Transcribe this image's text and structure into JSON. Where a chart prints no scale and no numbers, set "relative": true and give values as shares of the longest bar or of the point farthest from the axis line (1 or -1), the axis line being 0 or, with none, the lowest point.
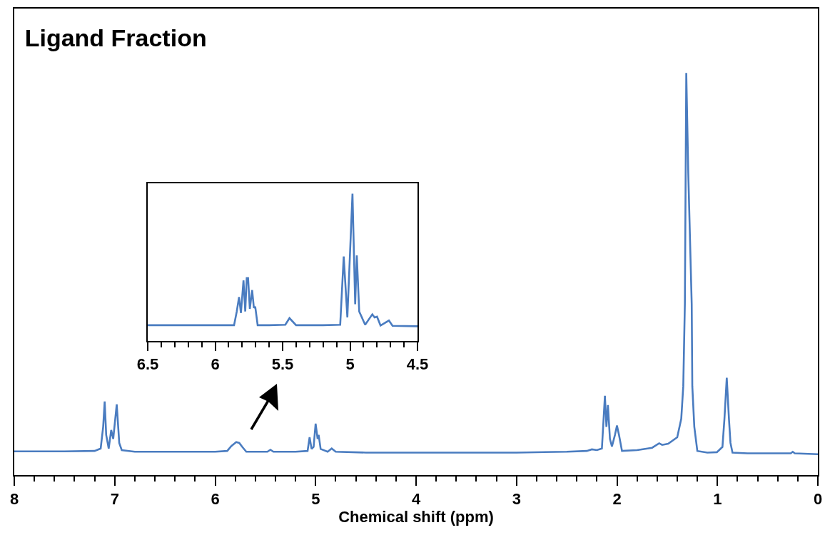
{
  "chart_data": [
    {
      "type": "line",
      "title": "Ligand Fraction",
      "xlabel": "Chemical shift (ppm)",
      "relative": true,
      "xlim": [
        8,
        0
      ],
      "xticks": [
        0,
        1,
        2,
        3,
        4,
        5,
        6,
        7,
        8,
        {
          "value": 0.2,
          "label": null
        },
        {
          "value": 0.4,
          "label": null
        },
        {
          "value": 0.6,
          "label": null
        },
        {
          "value": 0.8,
          "label": null
        },
        {
          "value": 1.2,
          "label": null
        },
        {
          "value": 1.4,
          "label": null
        },
        {
          "value": 1.6,
          "label": null
        },
        {
          "value": 1.8,
          "label": null
        },
        {
          "value": 2.2,
          "label": null
        },
        {
          "value": 2.4,
          "label": null
        },
        {
          "value": 2.6,
          "label": null
        },
        {
          "value": 2.8,
          "label": null
        },
        {
          "value": 3.2,
          "label": null
        },
        {
          "value": 3.4,
          "label": null
        },
        {
          "value": 3.6,
          "label": null
        },
        {
          "value": 3.8,
          "label": null
        },
        {
          "value": 4.2,
          "label": null
        },
        {
          "value": 4.4,
          "label": null
        },
        {
          "value": 4.6,
          "label": null
        },
        {
          "value": 4.8,
          "label": null
        },
        {
          "value": 5.2,
          "label": null
        },
        {
          "value": 5.4,
          "label": null
        },
        {
          "value": 5.6,
          "label": null
        },
        {
          "value": 5.8,
          "label": null
        },
        {
          "value": 6.2,
          "label": null
        },
        {
          "value": 6.4,
          "label": null
        },
        {
          "value": 6.6,
          "label": null
        },
        {
          "value": 6.8,
          "label": null
        },
        {
          "value": 7.2,
          "label": null
        },
        {
          "value": 7.4,
          "label": null
        },
        {
          "value": 7.6,
          "label": null
        },
        {
          "value": 7.8,
          "label": null
        }
      ],
      "x": [
        8,
        7.5,
        7.2,
        7.14,
        7.115,
        7.1,
        7.085,
        7.06,
        7.035,
        7.015,
        6.98,
        6.955,
        6.93,
        6.8,
        6.5,
        6.0,
        5.88,
        5.84,
        5.81,
        5.79,
        5.76,
        5.73,
        5.69,
        5.6,
        5.48,
        5.45,
        5.42,
        5.2,
        5.08,
        5.06,
        5.04,
        5.02,
        5.0,
        4.98,
        4.97,
        4.95,
        4.88,
        4.84,
        4.8,
        4.5,
        4.0,
        3.0,
        2.5,
        2.3,
        2.25,
        2.2,
        2.15,
        2.12,
        2.105,
        2.09,
        2.07,
        2.05,
        2.02,
        2.0,
        1.98,
        1.95,
        1.8,
        1.65,
        1.58,
        1.55,
        1.49,
        1.4,
        1.36,
        1.34,
        1.324,
        1.31,
        1.29,
        1.256,
        1.25,
        1.23,
        1.2,
        1.1,
        1.005,
        0.95,
        0.93,
        0.907,
        0.885,
        0.87,
        0.85,
        0.7,
        0.5,
        0.27,
        0.25,
        0.23,
        0
      ],
      "series": [
        {
          "color": "#4a7cc0",
          "values": [
            0.059,
            0.059,
            0.06,
            0.066,
            0.12,
            0.183,
            0.1,
            0.066,
            0.112,
            0.09,
            0.176,
            0.08,
            0.062,
            0.058,
            0.058,
            0.058,
            0.06,
            0.072,
            0.078,
            0.082,
            0.08,
            0.07,
            0.058,
            0.058,
            0.058,
            0.063,
            0.058,
            0.058,
            0.06,
            0.094,
            0.065,
            0.07,
            0.128,
            0.09,
            0.1,
            0.065,
            0.058,
            0.066,
            0.058,
            0.056,
            0.056,
            0.056,
            0.058,
            0.06,
            0.064,
            0.062,
            0.066,
            0.197,
            0.12,
            0.174,
            0.09,
            0.071,
            0.1,
            0.123,
            0.1,
            0.06,
            0.062,
            0.068,
            0.079,
            0.075,
            0.078,
            0.094,
            0.14,
            0.221,
            0.426,
            1.0,
            0.75,
            0.426,
            0.221,
            0.12,
            0.06,
            0.056,
            0.057,
            0.07,
            0.14,
            0.242,
            0.139,
            0.08,
            0.056,
            0.054,
            0.054,
            0.054,
            0.058,
            0.054,
            0.052
          ]
        }
      ]
    },
    {
      "type": "line",
      "relative": true,
      "xlim": [
        6.5,
        4.5
      ],
      "xticks": [
        4.5,
        5,
        5.5,
        6,
        6.5,
        {
          "value": 4.6,
          "label": null
        },
        {
          "value": 4.7,
          "label": null
        },
        {
          "value": 4.8,
          "label": null
        },
        {
          "value": 4.9,
          "label": null
        },
        {
          "value": 5.1,
          "label": null
        },
        {
          "value": 5.2,
          "label": null
        },
        {
          "value": 5.3,
          "label": null
        },
        {
          "value": 5.4,
          "label": null
        },
        {
          "value": 5.6,
          "label": null
        },
        {
          "value": 5.7,
          "label": null
        },
        {
          "value": 5.8,
          "label": null
        },
        {
          "value": 5.9,
          "label": null
        },
        {
          "value": 6.1,
          "label": null
        },
        {
          "value": 6.2,
          "label": null
        },
        {
          "value": 6.3,
          "label": null
        },
        {
          "value": 6.4,
          "label": null
        }
      ],
      "x": [
        6.5,
        6.0,
        5.86,
        5.84,
        5.823,
        5.809,
        5.79,
        5.777,
        5.766,
        5.756,
        5.743,
        5.726,
        5.713,
        5.703,
        5.685,
        5.6,
        5.48,
        5.449,
        5.4,
        5.2,
        5.073,
        5.047,
        5.02,
        4.982,
        4.962,
        4.95,
        4.932,
        4.888,
        4.835,
        4.818,
        4.8,
        4.774,
        4.712,
        4.685,
        4.5
      ],
      "series": [
        {
          "color": "#4a7cc0",
          "values": [
            0.107,
            0.107,
            0.107,
            0.2,
            0.298,
            0.19,
            0.411,
            0.2,
            0.427,
            0.427,
            0.218,
            0.346,
            0.225,
            0.233,
            0.107,
            0.107,
            0.11,
            0.155,
            0.107,
            0.107,
            0.11,
            0.573,
            0.16,
            1.0,
            0.249,
            0.581,
            0.2,
            0.11,
            0.181,
            0.16,
            0.165,
            0.105,
            0.139,
            0.103,
            0.1
          ]
        }
      ]
    }
  ]
}
